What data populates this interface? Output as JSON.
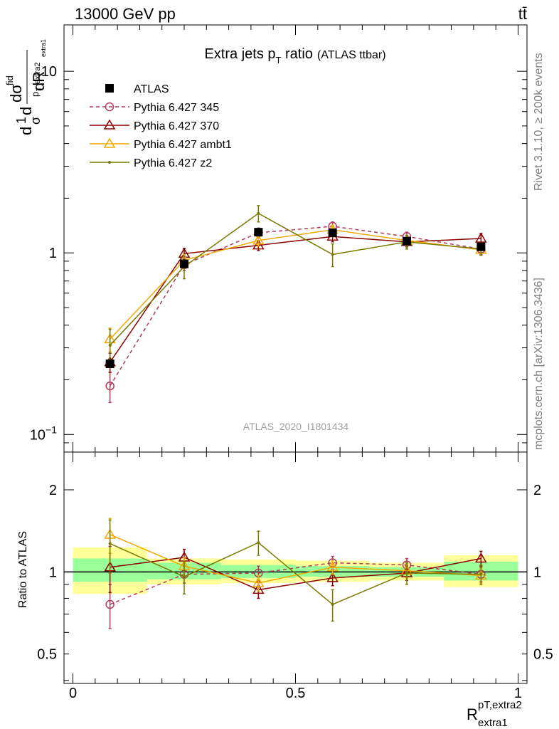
{
  "header": {
    "energy_label": "13000 GeV pp",
    "process_label": "tt̄"
  },
  "side_labels": {
    "rivet": "Rivet 3.1.10, ≥ 200k events",
    "mcplots": "mcplots.cern.ch [arXiv:1306.3436]"
  },
  "chart_data": [
    {
      "type": "line",
      "title": "Extra jets p_T ratio",
      "title_main": "Extra jets p",
      "title_sub": "T",
      "title_main2": " ratio",
      "title_suffix": "(ATLAS ttbar)",
      "watermark": "ATLAS_2020_I1801434",
      "ylabel_parts": [
        "d",
        "1",
        "σ",
        "d",
        "dσ",
        "fid",
        "p",
        "T",
        "extra2",
        "extra1",
        "dR"
      ],
      "yscale": "log",
      "ylim": [
        0.08,
        18
      ],
      "xlim": [
        -0.02,
        1.02
      ],
      "yticks": [
        {
          "v": 10,
          "base": "10",
          "exp": ""
        },
        {
          "v": 1,
          "base": "1",
          "exp": ""
        },
        {
          "v": 0.1,
          "base": "10",
          "exp": "−1"
        }
      ],
      "x": [
        0.0833,
        0.25,
        0.4167,
        0.5833,
        0.75,
        0.9167
      ],
      "series": [
        {
          "name": "ATLAS",
          "color": "#000000",
          "style": "data",
          "marker": "square",
          "values": [
            0.245,
            0.87,
            1.3,
            1.29,
            1.16,
            1.08
          ],
          "err": [
            0.01,
            0.04,
            0.04,
            0.04,
            0.03,
            0.03
          ]
        },
        {
          "name": "Pythia 6.427 345",
          "color": "#b03a5a",
          "style": "dashed",
          "marker": "circle",
          "values": [
            0.185,
            0.86,
            1.29,
            1.4,
            1.23,
            1.05
          ],
          "err": [
            0.035,
            0.06,
            0.08,
            0.08,
            0.07,
            0.07
          ]
        },
        {
          "name": "Pythia 6.427 370",
          "color": "#8b0000",
          "style": "solid",
          "marker": "triangle",
          "values": [
            0.25,
            0.99,
            1.1,
            1.23,
            1.15,
            1.2
          ],
          "err": [
            0.03,
            0.07,
            0.07,
            0.08,
            0.07,
            0.08
          ]
        },
        {
          "name": "Pythia 6.427 ambt1",
          "color": "#f0a800",
          "style": "solid",
          "marker": "triangle",
          "values": [
            0.335,
            0.91,
            1.17,
            1.34,
            1.17,
            1.04
          ],
          "err": [
            0.05,
            0.07,
            0.08,
            0.08,
            0.07,
            0.07
          ]
        },
        {
          "name": "Pythia 6.427 z2",
          "color": "#7a7a00",
          "style": "solid",
          "marker": "dot",
          "values": [
            0.31,
            0.84,
            1.65,
            0.98,
            1.15,
            1.05
          ],
          "err": [
            0.07,
            0.12,
            0.17,
            0.14,
            0.1,
            0.08
          ]
        }
      ],
      "legend_position": "top-left"
    },
    {
      "type": "line",
      "ylabel": "Ratio to ATLAS",
      "xlabel_main": "R",
      "xlabel_sup": "pT,extra2",
      "xlabel_sub": "extra1",
      "yscale": "log",
      "ylim": [
        0.39,
        2.75
      ],
      "xlim": [
        -0.02,
        1.02
      ],
      "yticks": [
        {
          "v": 2,
          "label": "2"
        },
        {
          "v": 1,
          "label": "1"
        },
        {
          "v": 0.5,
          "label": "0.5"
        }
      ],
      "xticks": [
        {
          "v": 0,
          "label": "0"
        },
        {
          "v": 0.5,
          "label": "0.5"
        },
        {
          "v": 1,
          "label": "1"
        }
      ],
      "bands": [
        {
          "x0": 0.0,
          "x1": 0.1667,
          "yellow": [
            0.83,
            1.23
          ],
          "green": [
            0.92,
            1.12
          ]
        },
        {
          "x0": 0.1667,
          "x1": 0.3333,
          "yellow": [
            0.9,
            1.12
          ],
          "green": [
            0.94,
            1.08
          ]
        },
        {
          "x0": 0.3333,
          "x1": 0.5,
          "yellow": [
            0.91,
            1.11
          ],
          "green": [
            0.95,
            1.06
          ]
        },
        {
          "x0": 0.5,
          "x1": 0.6667,
          "yellow": [
            0.92,
            1.1
          ],
          "green": [
            0.96,
            1.05
          ]
        },
        {
          "x0": 0.6667,
          "x1": 0.8333,
          "yellow": [
            0.93,
            1.08
          ],
          "green": [
            0.96,
            1.04
          ]
        },
        {
          "x0": 0.8333,
          "x1": 1.0,
          "yellow": [
            0.88,
            1.15
          ],
          "green": [
            0.93,
            1.09
          ]
        }
      ],
      "x": [
        0.0833,
        0.25,
        0.4167,
        0.5833,
        0.75,
        0.9167
      ],
      "series": [
        {
          "name": "Pythia 6.427 345",
          "color": "#b03a5a",
          "style": "dashed",
          "marker": "circle",
          "values": [
            0.76,
            0.98,
            0.99,
            1.08,
            1.06,
            0.98
          ],
          "err": [
            0.14,
            0.07,
            0.06,
            0.06,
            0.06,
            0.06
          ]
        },
        {
          "name": "Pythia 6.427 370",
          "color": "#8b0000",
          "style": "solid",
          "marker": "triangle",
          "values": [
            1.04,
            1.13,
            0.86,
            0.95,
            0.99,
            1.12
          ],
          "err": [
            0.2,
            0.08,
            0.06,
            0.06,
            0.06,
            0.07
          ]
        },
        {
          "name": "Pythia 6.427 ambt1",
          "color": "#f0a800",
          "style": "solid",
          "marker": "triangle",
          "values": [
            1.37,
            1.05,
            0.91,
            1.04,
            1.01,
            0.97
          ],
          "err": [
            0.2,
            0.08,
            0.06,
            0.06,
            0.06,
            0.06
          ]
        },
        {
          "name": "Pythia 6.427 z2",
          "color": "#7a7a00",
          "style": "solid",
          "marker": "dot",
          "values": [
            1.27,
            0.96,
            1.28,
            0.76,
            0.99,
            0.98
          ],
          "err": [
            0.28,
            0.13,
            0.13,
            0.1,
            0.09,
            0.08
          ]
        }
      ]
    }
  ]
}
